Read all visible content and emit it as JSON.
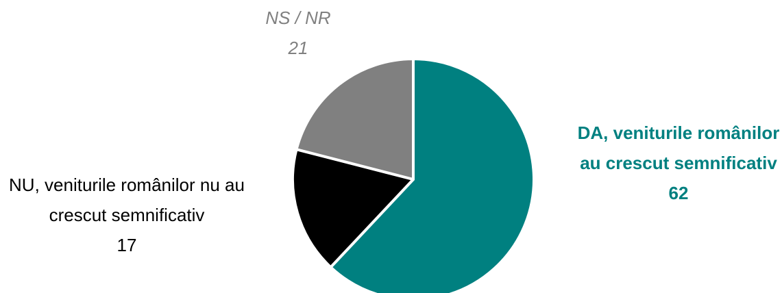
{
  "chart_data": {
    "type": "pie",
    "categories": [
      "DA, veniturile românilor au crescut semnificativ",
      "NU, veniturile românilor nu au crescut semnificativ",
      "NS / NR"
    ],
    "values": [
      62,
      17,
      21
    ],
    "colors": [
      "#008080",
      "#000000",
      "#808080"
    ]
  }
}
